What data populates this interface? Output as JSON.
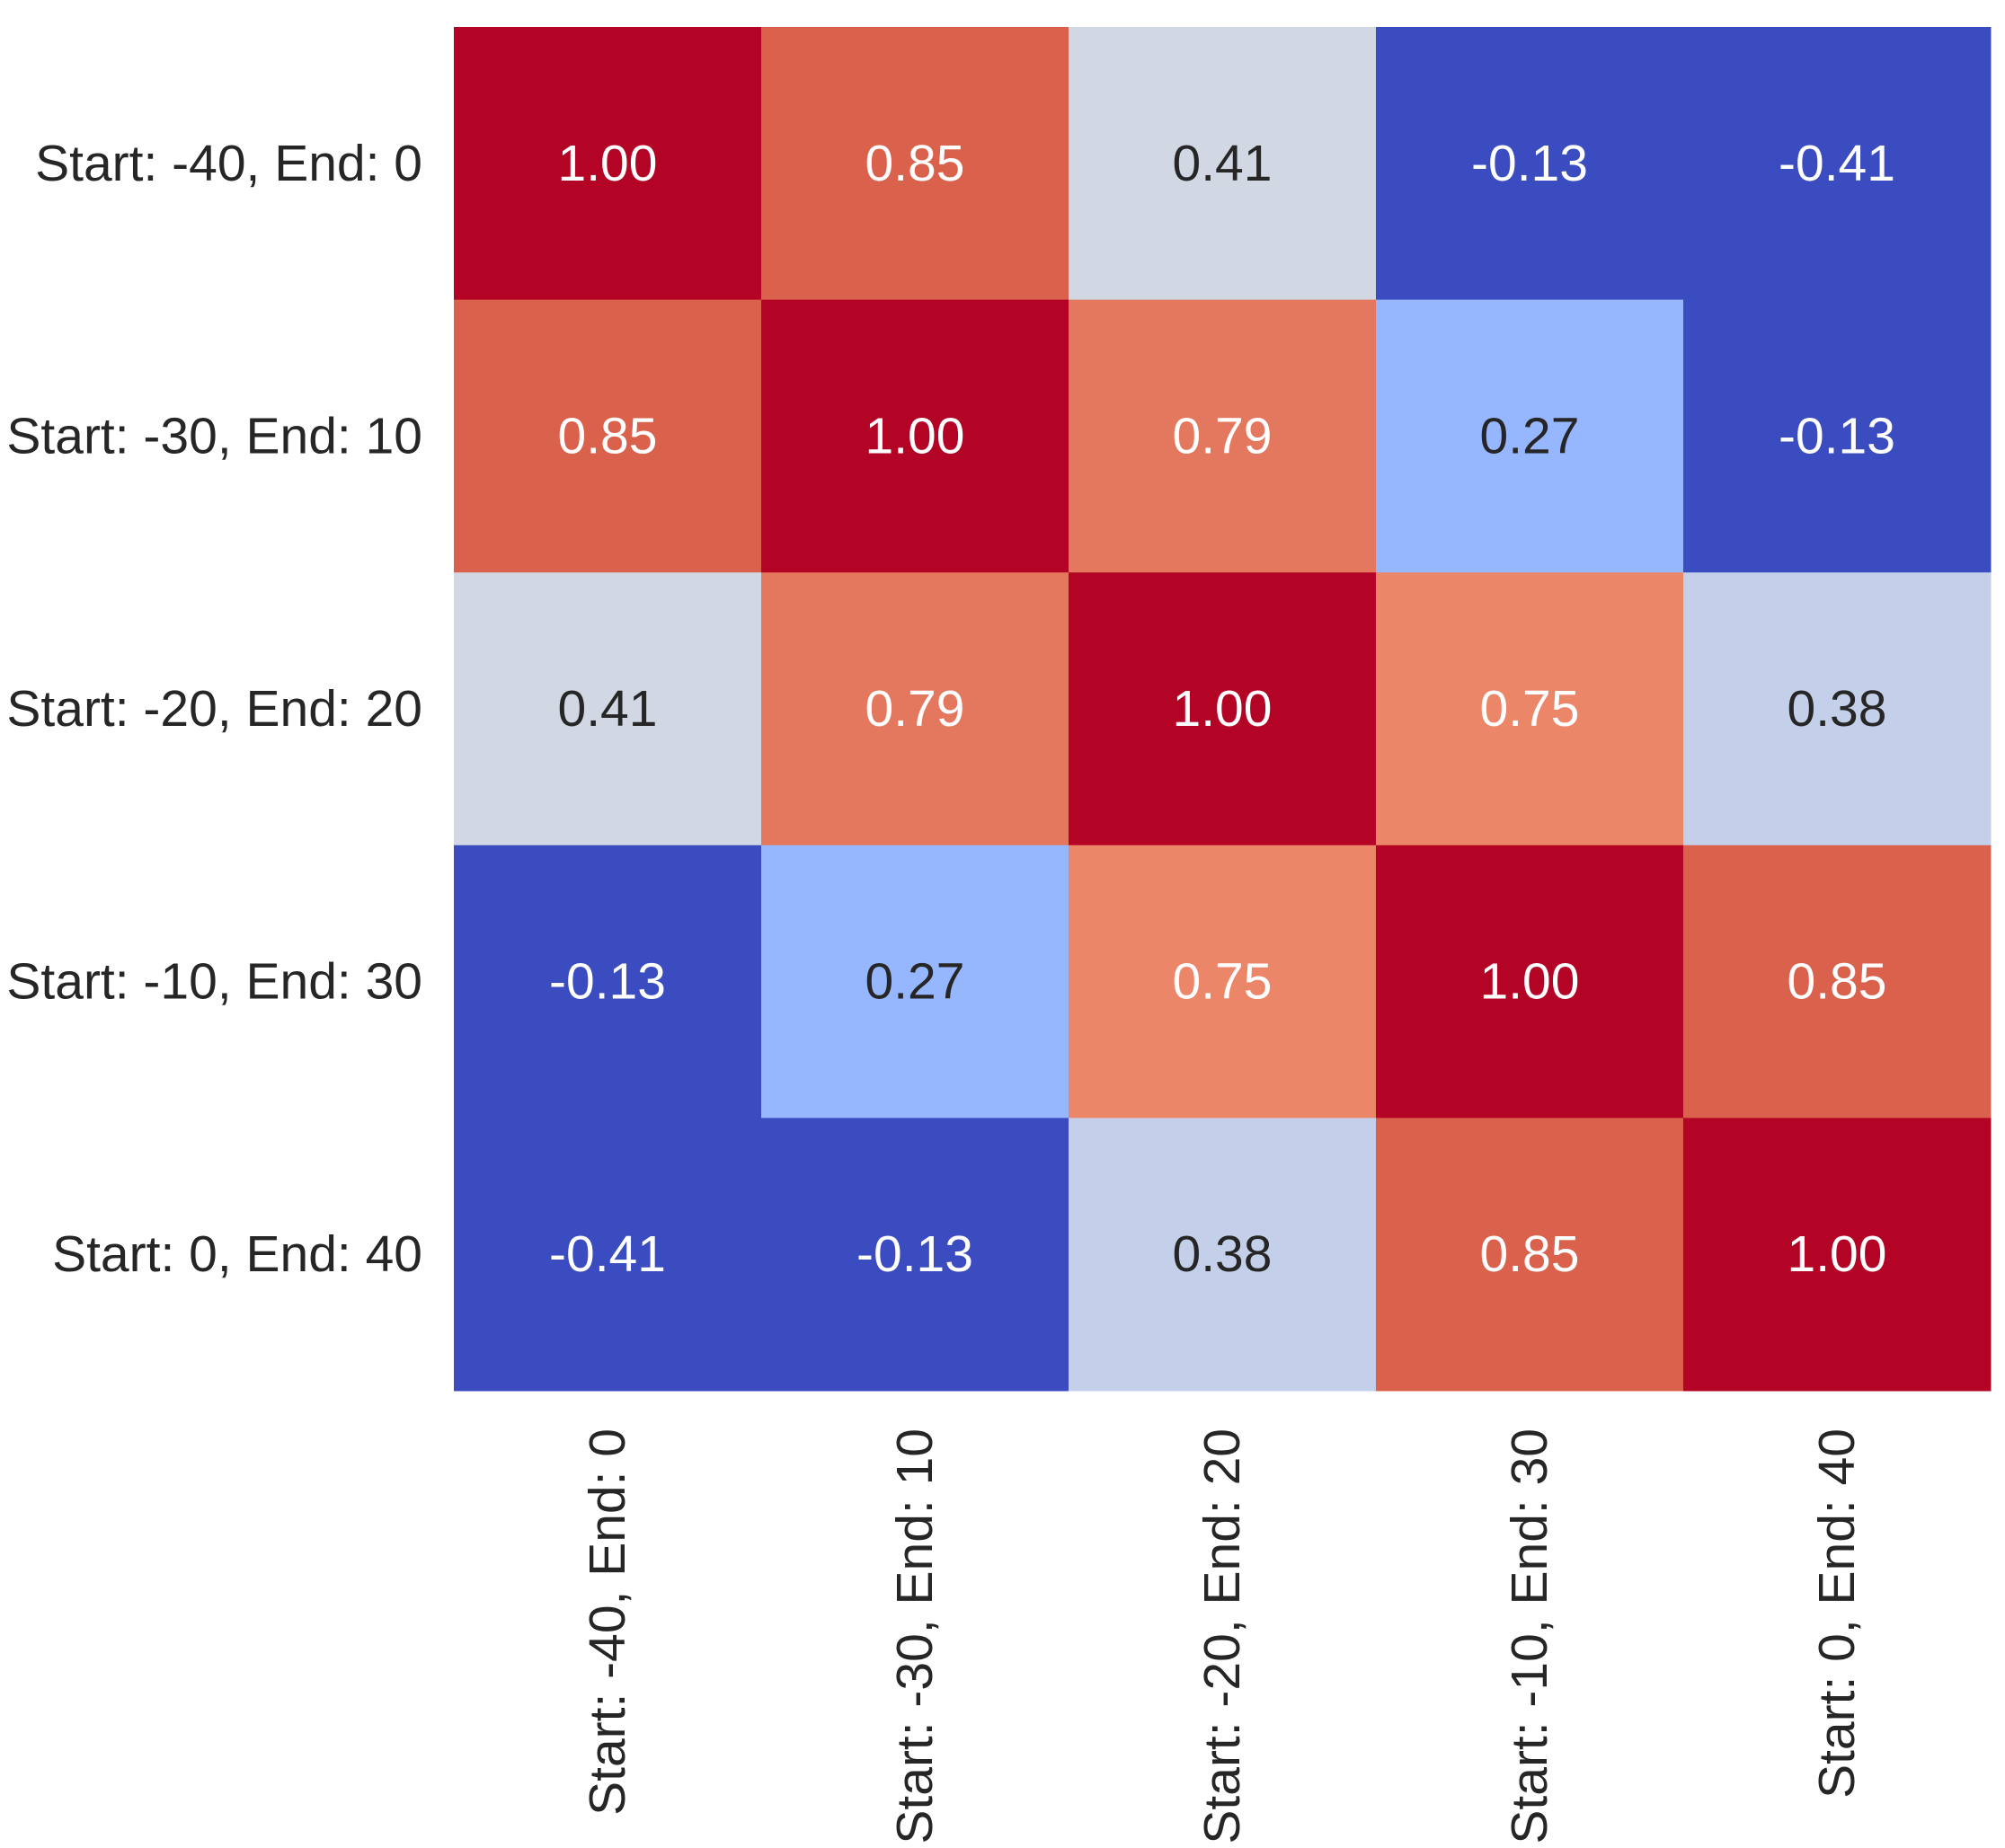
{
  "chart_data": {
    "type": "heatmap",
    "title": "",
    "xlabel": "",
    "ylabel": "",
    "x_categories": [
      "Start: -40, End: 0",
      "Start: -30, End: 10",
      "Start: -20, End: 20",
      "Start: -10, End: 30",
      "Start: 0, End: 40"
    ],
    "y_categories": [
      "Start: -40, End: 0",
      "Start: -30, End: 10",
      "Start: -20, End: 20",
      "Start: -10, End: 30",
      "Start: 0, End: 40"
    ],
    "values": [
      [
        1.0,
        0.85,
        0.41,
        -0.13,
        -0.41
      ],
      [
        0.85,
        1.0,
        0.79,
        0.27,
        -0.13
      ],
      [
        0.41,
        0.79,
        1.0,
        0.75,
        0.38
      ],
      [
        -0.13,
        0.27,
        0.75,
        1.0,
        0.85
      ],
      [
        -0.41,
        -0.13,
        0.38,
        0.85,
        1.0
      ]
    ],
    "value_format": "0.00",
    "colormap": "coolwarm",
    "color_range": [
      -0.13,
      1.0
    ],
    "colorbar": false,
    "annotated": true,
    "colors": {
      "low": "#3b4cc0",
      "high": "#b40426",
      "text_light": "#ffffff",
      "text_dark": "#262626"
    }
  }
}
